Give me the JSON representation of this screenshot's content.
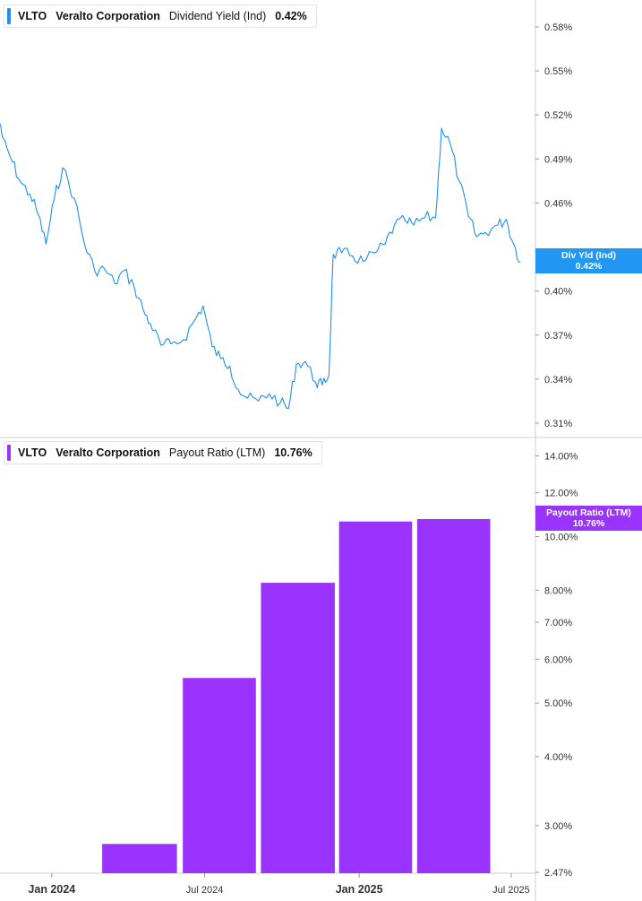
{
  "colors": {
    "yield_line": "#1f8ef1",
    "yield_tag": "#2196f3",
    "payout_bar": "#9b33ff",
    "payout_tag": "#9b33ff",
    "grid": "#d6d6d6",
    "axis_text": "#333333"
  },
  "top_legend": {
    "ticker": "VLTO",
    "company": "Veralto Corporation",
    "metric": "Dividend Yield (Ind)",
    "value": "0.42%"
  },
  "bottom_legend": {
    "ticker": "VLTO",
    "company": "Veralto Corporation",
    "metric": "Payout Ratio (LTM)",
    "value": "10.76%"
  },
  "yield_tag": {
    "label": "Div Yld (Ind)",
    "value": "0.42%"
  },
  "payout_tag": {
    "label": "Payout Ratio (LTM)",
    "value": "10.76%"
  },
  "chart_data": [
    {
      "type": "line",
      "series_name": "Dividend Yield (Ind)",
      "y_unit": "%",
      "ylim": [
        0.3,
        0.6
      ],
      "y_ticks": [
        0.31,
        0.34,
        0.37,
        0.4,
        0.46,
        0.49,
        0.52,
        0.55,
        0.58
      ],
      "y_tick_labels": [
        "0.31%",
        "0.34%",
        "0.37%",
        "0.40%",
        "0.46%",
        "0.49%",
        "0.52%",
        "0.55%",
        "0.58%"
      ],
      "x_range": [
        "2023-10-26",
        "2025-07-16"
      ],
      "points": [
        [
          "2023-10-26",
          0.525
        ],
        [
          "2023-11-03",
          0.505
        ],
        [
          "2023-11-15",
          0.488
        ],
        [
          "2023-11-25",
          0.474
        ],
        [
          "2023-12-06",
          0.466
        ],
        [
          "2023-12-16",
          0.452
        ],
        [
          "2023-12-25",
          0.432
        ],
        [
          "2024-01-04",
          0.463
        ],
        [
          "2024-01-14",
          0.484
        ],
        [
          "2024-01-28",
          0.463
        ],
        [
          "2024-02-09",
          0.432
        ],
        [
          "2024-02-21",
          0.414
        ],
        [
          "2024-03-04",
          0.415
        ],
        [
          "2024-03-16",
          0.405
        ],
        [
          "2024-03-27",
          0.414
        ],
        [
          "2024-04-08",
          0.403
        ],
        [
          "2024-04-19",
          0.387
        ],
        [
          "2024-04-27",
          0.378
        ],
        [
          "2024-05-10",
          0.363
        ],
        [
          "2024-05-22",
          0.364
        ],
        [
          "2024-06-06",
          0.367
        ],
        [
          "2024-06-19",
          0.38
        ],
        [
          "2024-06-29",
          0.39
        ],
        [
          "2024-07-10",
          0.362
        ],
        [
          "2024-07-20",
          0.354
        ],
        [
          "2024-07-31",
          0.349
        ],
        [
          "2024-08-10",
          0.333
        ],
        [
          "2024-08-21",
          0.327
        ],
        [
          "2024-09-03",
          0.325
        ],
        [
          "2024-09-16",
          0.33
        ],
        [
          "2024-09-29",
          0.324
        ],
        [
          "2024-10-09",
          0.32
        ],
        [
          "2024-10-18",
          0.35
        ],
        [
          "2024-10-29",
          0.352
        ],
        [
          "2024-11-10",
          0.338
        ],
        [
          "2024-11-18",
          0.336
        ],
        [
          "2024-11-26",
          0.343
        ],
        [
          "2024-12-01",
          0.425
        ],
        [
          "2024-12-11",
          0.426
        ],
        [
          "2024-12-24",
          0.424
        ],
        [
          "2025-01-06",
          0.42
        ],
        [
          "2025-01-20",
          0.426
        ],
        [
          "2025-02-01",
          0.432
        ],
        [
          "2025-02-12",
          0.445
        ],
        [
          "2025-02-25",
          0.448
        ],
        [
          "2025-03-07",
          0.445
        ],
        [
          "2025-03-20",
          0.45
        ],
        [
          "2025-04-02",
          0.45
        ],
        [
          "2025-04-09",
          0.511
        ],
        [
          "2025-04-19",
          0.501
        ],
        [
          "2025-04-30",
          0.475
        ],
        [
          "2025-05-11",
          0.451
        ],
        [
          "2025-05-21",
          0.437
        ],
        [
          "2025-05-31",
          0.44
        ],
        [
          "2025-06-15",
          0.445
        ],
        [
          "2025-06-25",
          0.449
        ],
        [
          "2025-07-04",
          0.432
        ],
        [
          "2025-07-12",
          0.42
        ]
      ]
    },
    {
      "type": "bar",
      "series_name": "Payout Ratio (LTM)",
      "y_unit": "%",
      "y_scale": "log",
      "ylim": [
        2.47,
        15.0
      ],
      "y_ticks": [
        2.47,
        3.0,
        4.0,
        5.0,
        6.0,
        7.0,
        8.0,
        10.0,
        12.0,
        14.0
      ],
      "y_tick_labels": [
        "2.47%",
        "3.00%",
        "4.00%",
        "5.00%",
        "6.00%",
        "7.00%",
        "8.00%",
        "10.00%",
        "12.00%",
        "14.00%"
      ],
      "bars": [
        {
          "x_start": "2024-03-01",
          "x_end": "2024-05-29",
          "value": 2.78
        },
        {
          "x_start": "2024-06-05",
          "x_end": "2024-08-31",
          "value": 5.55
        },
        {
          "x_start": "2024-09-06",
          "x_end": "2024-12-03",
          "value": 8.25
        },
        {
          "x_start": "2024-12-08",
          "x_end": "2025-03-05",
          "value": 10.65
        },
        {
          "x_start": "2025-03-11",
          "x_end": "2025-06-06",
          "value": 10.76
        }
      ],
      "x_ticks": [
        "2024-01-01",
        "2024-07-01",
        "2025-01-01",
        "2025-07-01"
      ],
      "x_tick_labels": [
        "Jan 2024",
        "Jul 2024",
        "Jan 2025",
        "Jul 2025"
      ]
    }
  ]
}
